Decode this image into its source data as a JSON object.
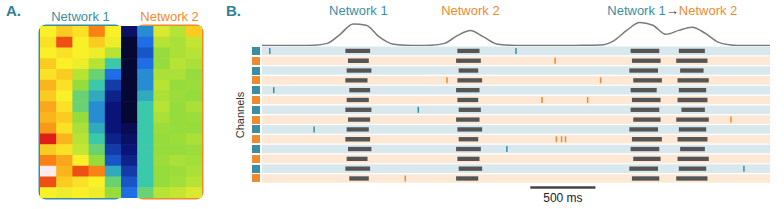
{
  "chart_data": [
    {
      "type": "heatmap",
      "title": "A.",
      "tick_labels": false,
      "zlim": [
        0,
        1
      ],
      "groups": [
        {
          "name": "Network 1",
          "color": "#3a8ea3",
          "columns": [
            0,
            4
          ]
        },
        {
          "name": "Network 2",
          "color": "#ee8b2e",
          "columns": [
            6,
            9
          ]
        }
      ],
      "cells": [
        [
          0.7,
          0.75,
          0.72,
          0.85,
          0.7,
          0.1,
          0.35,
          0.65,
          0.6,
          0.75
        ],
        [
          0.72,
          0.9,
          0.7,
          0.75,
          0.68,
          0.05,
          0.3,
          0.6,
          0.58,
          0.62
        ],
        [
          0.7,
          0.72,
          0.7,
          0.68,
          0.6,
          0.05,
          0.25,
          0.55,
          0.58,
          0.6
        ],
        [
          0.75,
          0.7,
          0.68,
          0.6,
          0.45,
          0.05,
          0.3,
          0.55,
          0.6,
          0.58
        ],
        [
          0.72,
          0.75,
          0.6,
          0.5,
          0.3,
          0.05,
          0.35,
          0.58,
          0.58,
          0.55
        ],
        [
          0.78,
          0.72,
          0.55,
          0.45,
          0.2,
          0.05,
          0.35,
          0.6,
          0.55,
          0.56
        ],
        [
          0.75,
          0.7,
          0.5,
          0.4,
          0.15,
          0.05,
          0.4,
          0.58,
          0.56,
          0.55
        ],
        [
          0.8,
          0.72,
          0.5,
          0.35,
          0.12,
          0.05,
          0.45,
          0.6,
          0.55,
          0.58
        ],
        [
          0.78,
          0.75,
          0.55,
          0.35,
          0.12,
          0.05,
          0.45,
          0.58,
          0.55,
          0.56
        ],
        [
          0.82,
          0.72,
          0.58,
          0.4,
          0.12,
          0.08,
          0.45,
          0.56,
          0.55,
          0.55
        ],
        [
          0.95,
          0.78,
          0.6,
          0.45,
          0.15,
          0.1,
          0.45,
          0.55,
          0.56,
          0.58
        ],
        [
          0.75,
          0.72,
          0.62,
          0.5,
          0.2,
          0.12,
          0.45,
          0.55,
          0.55,
          0.56
        ],
        [
          0.85,
          0.8,
          0.7,
          0.55,
          0.25,
          0.15,
          0.45,
          0.56,
          0.58,
          0.57
        ],
        [
          1.0,
          0.78,
          0.9,
          0.85,
          0.4,
          0.2,
          0.45,
          0.55,
          0.56,
          0.58
        ],
        [
          0.9,
          0.75,
          0.72,
          0.7,
          0.5,
          0.25,
          0.45,
          0.55,
          0.57,
          0.6
        ],
        [
          0.7,
          0.68,
          0.7,
          0.68,
          0.55,
          0.3,
          0.5,
          0.6,
          0.62,
          0.65
        ]
      ]
    },
    {
      "type": "line",
      "title": "B.",
      "tick_labels": false,
      "color": "#7a7a7a",
      "xlim": [
        0,
        3900
      ],
      "ylim": [
        0,
        1
      ],
      "x": [
        0,
        100,
        200,
        300,
        400,
        500,
        600,
        700,
        800,
        900,
        1000,
        1100,
        1200,
        1300,
        1400,
        1500,
        1600,
        1700,
        1800,
        1900,
        2000,
        2100,
        2200,
        2300,
        2400,
        2500,
        2600,
        2700,
        2800,
        2900,
        3000,
        3100,
        3200,
        3300,
        3400,
        3500,
        3600,
        3700,
        3800,
        3900
      ],
      "values": [
        0.02,
        0.02,
        0.02,
        0.02,
        0.03,
        0.1,
        0.45,
        0.85,
        0.8,
        0.35,
        0.08,
        0.03,
        0.02,
        0.03,
        0.1,
        0.4,
        0.6,
        0.35,
        0.08,
        0.03,
        0.02,
        0.02,
        0.02,
        0.02,
        0.02,
        0.03,
        0.04,
        0.2,
        0.6,
        0.9,
        0.8,
        0.45,
        0.6,
        0.72,
        0.5,
        0.15,
        0.04,
        0.02,
        0.02,
        0.02
      ],
      "annotations": [
        {
          "x": 740,
          "parts": [
            {
              "text": "Network 1",
              "color": "#3a8ea3"
            }
          ]
        },
        {
          "x": 1600,
          "parts": [
            {
              "text": "Network 2",
              "color": "#ee8b2e"
            }
          ]
        },
        {
          "x": 3150,
          "parts": [
            {
              "text": "Network 1",
              "color": "#3a8ea3"
            },
            {
              "text": "→",
              "color": "#333333"
            },
            {
              "text": "Network 2",
              "color": "#ee8b2e"
            }
          ]
        }
      ]
    },
    {
      "type": "raster",
      "ylabel": "Channels",
      "tick_labels": false,
      "xlim": [
        0,
        3900
      ],
      "scale_bar": {
        "x": 2060,
        "value": 500,
        "label": "500 ms"
      },
      "channels": [
        {
          "color": "#3a8ea3",
          "bursts": [
            [
              640,
              830
            ],
            [
              1500,
              1670
            ],
            [
              2830,
              3050
            ],
            [
              3200,
              3400
            ]
          ],
          "spikes": [
            60,
            1950
          ]
        },
        {
          "color": "#ee8b2e",
          "bursts": [
            [
              660,
              820
            ],
            [
              1490,
              1680
            ],
            [
              2840,
              3060
            ],
            [
              3180,
              3420
            ]
          ],
          "spikes": [
            2250
          ]
        },
        {
          "color": "#3a8ea3",
          "bursts": [
            [
              650,
              840
            ],
            [
              1510,
              1660
            ],
            [
              2820,
              3040
            ],
            [
              3210,
              3390
            ]
          ],
          "spikes": []
        },
        {
          "color": "#ee8b2e",
          "bursts": [
            [
              640,
              810
            ],
            [
              1500,
              1690
            ],
            [
              2850,
              3070
            ],
            [
              3190,
              3430
            ]
          ],
          "spikes": [
            1420,
            2600
          ]
        },
        {
          "color": "#3a8ea3",
          "bursts": [
            [
              670,
              830
            ],
            [
              1490,
              1670
            ],
            [
              2830,
              3030
            ],
            [
              3200,
              3410
            ]
          ],
          "spikes": [
            90
          ]
        },
        {
          "color": "#ee8b2e",
          "bursts": [
            [
              650,
              820
            ],
            [
              1500,
              1660
            ],
            [
              2840,
              3060
            ],
            [
              3190,
              3420
            ]
          ],
          "spikes": [
            2150,
            2500
          ]
        },
        {
          "color": "#3a8ea3",
          "bursts": [
            [
              640,
              840
            ],
            [
              1510,
              1680
            ],
            [
              2830,
              3050
            ],
            [
              3220,
              3400
            ]
          ],
          "spikes": [
            1200
          ]
        },
        {
          "color": "#ee8b2e",
          "bursts": [
            [
              660,
              830
            ],
            [
              1490,
              1670
            ],
            [
              2850,
              3060
            ],
            [
              3180,
              3430
            ]
          ],
          "spikes": [
            3600
          ]
        },
        {
          "color": "#3a8ea3",
          "bursts": [
            [
              650,
              820
            ],
            [
              1500,
              1690
            ],
            [
              2820,
              3040
            ],
            [
              3200,
              3410
            ]
          ],
          "spikes": [
            400
          ]
        },
        {
          "color": "#ee8b2e",
          "bursts": [
            [
              640,
              830
            ],
            [
              1510,
              1660
            ],
            [
              2840,
              3070
            ],
            [
              3190,
              3420
            ]
          ],
          "spikes": [
            2260,
            2300,
            2330
          ]
        },
        {
          "color": "#3a8ea3",
          "bursts": [
            [
              660,
              840
            ],
            [
              1490,
              1680
            ],
            [
              2830,
              3050
            ],
            [
              3210,
              3400
            ]
          ],
          "spikes": [
            1880
          ]
        },
        {
          "color": "#ee8b2e",
          "bursts": [
            [
              650,
              810
            ],
            [
              1500,
              1670
            ],
            [
              2850,
              3060
            ],
            [
              3190,
              3430
            ]
          ],
          "spikes": []
        },
        {
          "color": "#3a8ea3",
          "bursts": [
            [
              640,
              830
            ],
            [
              1510,
              1690
            ],
            [
              2820,
              3040
            ],
            [
              3200,
              3410
            ]
          ],
          "spikes": [
            3700
          ]
        },
        {
          "color": "#ee8b2e",
          "bursts": [
            [
              670,
              820
            ],
            [
              1490,
              1660
            ],
            [
              2840,
              3050
            ],
            [
              3180,
              3420
            ]
          ],
          "spikes": [
            1100
          ]
        }
      ]
    }
  ]
}
